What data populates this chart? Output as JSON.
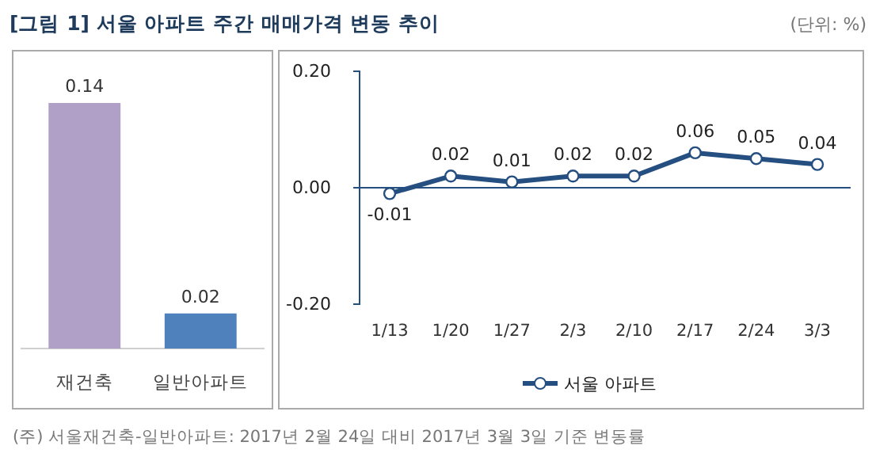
{
  "chart_data": [
    {
      "type": "bar",
      "title": "[그림 1] 서울 아파트 주간 매매가격 변동 추이",
      "annotations": [
        "(단위: %)",
        "(주) 서울재건축-일반아파트: 2017년 2월 24일 대비 2017년 3월 3일 기준 변동률"
      ],
      "categories": [
        "재건축",
        "일반아파트"
      ],
      "values": [
        0.14,
        0.02
      ],
      "colors": [
        "#b0a0c8",
        "#4f81bd"
      ],
      "data_labels": true
    },
    {
      "type": "line",
      "categories": [
        "1/13",
        "1/20",
        "1/27",
        "2/3",
        "2/10",
        "2/17",
        "2/24",
        "3/3"
      ],
      "series": [
        {
          "name": "서울 아파트",
          "color": "#254f80",
          "values": [
            -0.01,
            0.02,
            0.01,
            0.02,
            0.02,
            0.06,
            0.05,
            0.04
          ]
        }
      ],
      "ylim": [
        -0.2,
        0.2
      ],
      "yticks": [
        {
          "value": -0.2,
          "label": "-0.20"
        },
        {
          "value": 0,
          "label": "0.00"
        },
        {
          "value": 0.2,
          "label": "0.20"
        }
      ],
      "ref_lines": [
        {
          "axis": "y",
          "value": 0,
          "color": "#254f80"
        }
      ],
      "data_labels": true,
      "marker": "circle",
      "legend": "bottom",
      "grid": false
    }
  ]
}
